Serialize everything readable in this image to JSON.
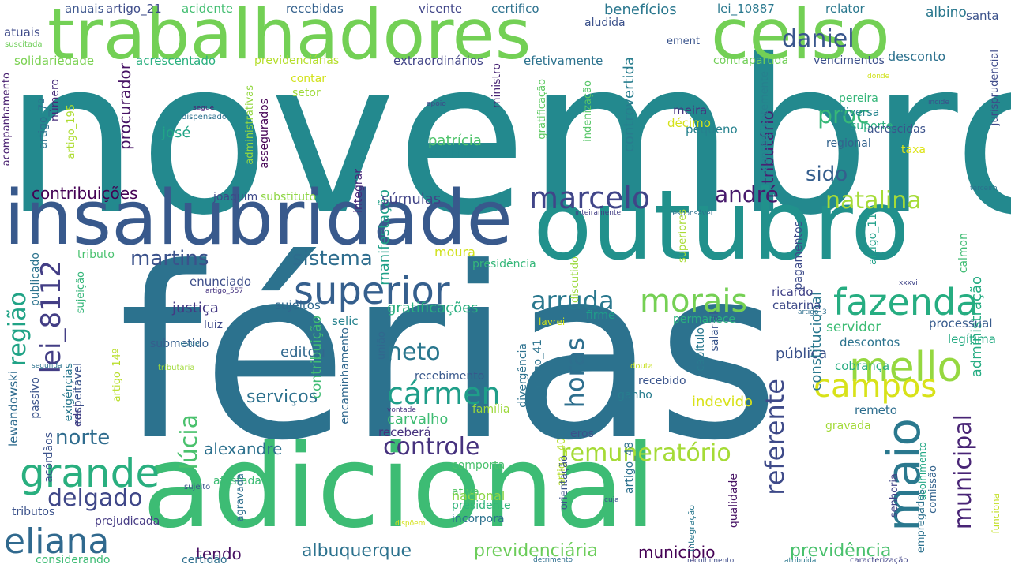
{
  "words": [
    {
      "text": "novembro",
      "color": "#23898e"
    },
    {
      "text": "férias",
      "color": "#2c728e"
    },
    {
      "text": "adicional",
      "color": "#3dbc74"
    },
    {
      "text": "trabalhadores",
      "color": "#73d055"
    },
    {
      "text": "celso",
      "color": "#73d055"
    },
    {
      "text": "insalubridade",
      "color": "#38598c"
    },
    {
      "text": "outubro",
      "color": "#21918c"
    },
    {
      "text": "superior",
      "color": "#355f8d"
    },
    {
      "text": "mello",
      "color": "#95d840"
    },
    {
      "text": "fazenda",
      "color": "#26ad81"
    },
    {
      "text": "morais",
      "color": "#75d054"
    },
    {
      "text": "campos",
      "color": "#d8e219"
    },
    {
      "text": "marcelo",
      "color": "#404588"
    },
    {
      "text": "grande",
      "color": "#29af7f"
    },
    {
      "text": "eliana",
      "color": "#30698e"
    },
    {
      "text": "cármen",
      "color": "#1f9e89"
    },
    {
      "text": "maio",
      "color": "#2a788e"
    },
    {
      "text": "lei_8112",
      "color": "#433e85"
    },
    {
      "text": "daniel",
      "color": "#39568c"
    },
    {
      "text": "arruda",
      "color": "#2a788e"
    },
    {
      "text": "remuneratório",
      "color": "#a5db36"
    },
    {
      "text": "controle",
      "color": "#46327e"
    },
    {
      "text": "natalina",
      "color": "#a5db36"
    },
    {
      "text": "delgado",
      "color": "#3f4788"
    },
    {
      "text": "neto",
      "color": "#2a778e"
    },
    {
      "text": "sistema",
      "color": "#2e6d8e"
    },
    {
      "text": "martins",
      "color": "#3b528b"
    },
    {
      "text": "norte",
      "color": "#2f6c8e"
    },
    {
      "text": "andré",
      "color": "#481a6c"
    },
    {
      "text": "proc",
      "color": "#37b878"
    },
    {
      "text": "sido",
      "color": "#355e8d"
    },
    {
      "text": "horas",
      "color": "#2e6f8e"
    },
    {
      "text": "referente",
      "color": "#3e4a89"
    },
    {
      "text": "municipal",
      "color": "#482475"
    },
    {
      "text": "região",
      "color": "#20a386"
    },
    {
      "text": "lúcia",
      "color": "#4ac16d"
    },
    {
      "text": "serviços",
      "color": "#2d718e"
    },
    {
      "text": "contribuições",
      "color": "#440154"
    },
    {
      "text": "tendo",
      "color": "#471063"
    },
    {
      "text": "albuquerque",
      "color": "#2c728e"
    },
    {
      "text": "previdenciária",
      "color": "#6ccd5a"
    },
    {
      "text": "município",
      "color": "#440154"
    },
    {
      "text": "previdência",
      "color": "#4ac16d"
    },
    {
      "text": "benefícios",
      "color": "#2a778e"
    },
    {
      "text": "albino",
      "color": "#2a788e"
    },
    {
      "text": "desconto",
      "color": "#2c718e"
    },
    {
      "text": "tributário",
      "color": "#482173"
    },
    {
      "text": "controvertida",
      "color": "#287d8e"
    },
    {
      "text": "josé",
      "color": "#20a486"
    },
    {
      "text": "procurador",
      "color": "#471365"
    },
    {
      "text": "manifestação",
      "color": "#1fa088"
    },
    {
      "text": "patrícia",
      "color": "#4ec36b"
    },
    {
      "text": "súmulas",
      "color": "#414487"
    },
    {
      "text": "justiça",
      "color": "#443983"
    },
    {
      "text": "gratificações",
      "color": "#29af7f"
    },
    {
      "text": "servidor",
      "color": "#3dbc74"
    },
    {
      "text": "pública",
      "color": "#3b528b"
    },
    {
      "text": "editou",
      "color": "#31688e"
    },
    {
      "text": "carvalho",
      "color": "#3fbc73"
    },
    {
      "text": "alexandre",
      "color": "#2d718e"
    },
    {
      "text": "nacional",
      "color": "#8bd646"
    },
    {
      "text": "indevido",
      "color": "#d8e219"
    },
    {
      "text": "administração",
      "color": "#25ac82"
    },
    {
      "text": "constitucional",
      "color": "#2a788e"
    },
    {
      "text": "lewandowski",
      "color": "#2f6b8e"
    },
    {
      "text": "contribuição",
      "color": "#3fbc73"
    },
    {
      "text": "moura",
      "color": "#d0e11c"
    },
    {
      "text": "enunciado",
      "color": "#3d4e8a"
    },
    {
      "text": "luiz",
      "color": "#3e4989"
    },
    {
      "text": "selic",
      "color": "#26828e"
    },
    {
      "text": "sujeitos",
      "color": "#31688e"
    },
    {
      "text": "ricardo",
      "color": "#414287"
    },
    {
      "text": "catarina",
      "color": "#3e4a89"
    },
    {
      "text": "processual",
      "color": "#375b8d"
    },
    {
      "text": "descontos",
      "color": "#2c738e"
    },
    {
      "text": "cobrança",
      "color": "#26ad81"
    },
    {
      "text": "legítima",
      "color": "#25ab82"
    },
    {
      "text": "remeto",
      "color": "#2e6e8e"
    },
    {
      "text": "gravada",
      "color": "#a2da37"
    },
    {
      "text": "acidente",
      "color": "#42be71"
    },
    {
      "text": "recebidas",
      "color": "#34618d"
    },
    {
      "text": "vicente",
      "color": "#404588"
    },
    {
      "text": "certifico",
      "color": "#2c718e"
    },
    {
      "text": "lei_10887",
      "color": "#2a788e"
    },
    {
      "text": "relator",
      "color": "#2a788e"
    },
    {
      "text": "santa",
      "color": "#3b528b"
    },
    {
      "text": "anuais",
      "color": "#3a548c"
    },
    {
      "text": "artigo_21",
      "color": "#3e4c8a"
    },
    {
      "text": "atuais",
      "color": "#3e4a89"
    },
    {
      "text": "suscitada",
      "color": "#6ece58"
    },
    {
      "text": "solidariedade",
      "color": "#7ad151"
    },
    {
      "text": "acrescentado",
      "color": "#2ab07f"
    },
    {
      "text": "previdenciárias",
      "color": "#b5de2b"
    },
    {
      "text": "extraordinários",
      "color": "#414487"
    },
    {
      "text": "efetivamente",
      "color": "#2c728e"
    },
    {
      "text": "contrapartida",
      "color": "#71cf57"
    },
    {
      "text": "vencimentos",
      "color": "#3c508b"
    },
    {
      "text": "aludida",
      "color": "#3b518b"
    },
    {
      "text": "ement",
      "color": "#3a548c"
    },
    {
      "text": "donde",
      "color": "#d0e11c"
    },
    {
      "text": "acompanhamento",
      "color": "#481f70"
    },
    {
      "text": "artigo_7º",
      "color": "#2e6f8e"
    },
    {
      "text": "número",
      "color": "#472c7a"
    },
    {
      "text": "artigo_195",
      "color": "#addc30"
    },
    {
      "text": "contar",
      "color": "#d2e21b"
    },
    {
      "text": "setor",
      "color": "#9fda3a"
    },
    {
      "text": "administrativas",
      "color": "#93d741"
    },
    {
      "text": "assegurados",
      "color": "#440154"
    },
    {
      "text": "segue",
      "color": "#482475"
    },
    {
      "text": "dispensado",
      "color": "#2d718e"
    },
    {
      "text": "apoio",
      "color": "#3e4a89"
    },
    {
      "text": "ministro",
      "color": "#482575"
    },
    {
      "text": "gratificação",
      "color": "#5ec962"
    },
    {
      "text": "indenização",
      "color": "#56c667"
    },
    {
      "text": "pequeno",
      "color": "#26828e"
    },
    {
      "text": "meira",
      "color": "#463480"
    },
    {
      "text": "décimo",
      "color": "#d5e21a"
    },
    {
      "text": "conseqüentemente",
      "color": "#27808e"
    },
    {
      "text": "pereira",
      "color": "#34b679"
    },
    {
      "text": "diversa",
      "color": "#25848e"
    },
    {
      "text": "suporte",
      "color": "#2ab07f"
    },
    {
      "text": "regional",
      "color": "#33638d"
    },
    {
      "text": "acrescidas",
      "color": "#3b528b"
    },
    {
      "text": "taxa",
      "color": "#dde318"
    },
    {
      "text": "incide",
      "color": "#3c508b"
    },
    {
      "text": "jurisprudencial",
      "color": "#3e4a89"
    },
    {
      "text": "terceiro",
      "color": "#2c728e"
    },
    {
      "text": "acolhido",
      "color": "#23898e"
    },
    {
      "text": "integrar",
      "color": "#472a7a"
    },
    {
      "text": "joaquim",
      "color": "#3e4989"
    },
    {
      "text": "substituto",
      "color": "#8ed645"
    },
    {
      "text": "inteiramente",
      "color": "#433e85"
    },
    {
      "text": "responsável",
      "color": "#2d708e"
    },
    {
      "text": "superiores",
      "color": "#a8db34"
    },
    {
      "text": "pagamentos",
      "color": "#3e4c8a"
    },
    {
      "text": "artigo_11",
      "color": "#1f9f88"
    },
    {
      "text": "presidência",
      "color": "#35b779"
    },
    {
      "text": "tributo",
      "color": "#48c16e"
    },
    {
      "text": "sujeição",
      "color": "#34b679"
    },
    {
      "text": "publicado",
      "color": "#2c738e"
    },
    {
      "text": "artigo_557",
      "color": "#463480"
    },
    {
      "text": "discutido",
      "color": "#9bd93c"
    },
    {
      "text": "xxxvi",
      "color": "#404588"
    },
    {
      "text": "calmon",
      "color": "#3fbc73"
    },
    {
      "text": "firme",
      "color": "#1f9e89"
    },
    {
      "text": "artigo_3",
      "color": "#2e6f8e"
    },
    {
      "text": "permanece",
      "color": "#2ab07f"
    },
    {
      "text": "lavrei",
      "color": "#d2e21b"
    },
    {
      "text": "submetido",
      "color": "#355e8d"
    },
    {
      "text": "reside",
      "color": "#2a768e"
    },
    {
      "text": "tributária",
      "color": "#a0da39"
    },
    {
      "text": "segunda",
      "color": "#2d718e"
    },
    {
      "text": "passivo",
      "color": "#3a538b"
    },
    {
      "text": "respeitável",
      "color": "#3b528b"
    },
    {
      "text": "artigo_14º",
      "color": "#b8de29"
    },
    {
      "text": "exigências",
      "color": "#2a788e"
    },
    {
      "text": "encaminhamento",
      "color": "#31688e"
    },
    {
      "text": "união",
      "color": "#31688e"
    },
    {
      "text": "artigo_41",
      "color": "#2c738e"
    },
    {
      "text": "recebimento",
      "color": "#38588c"
    },
    {
      "text": "recebido",
      "color": "#3a548c"
    },
    {
      "text": "capítulo",
      "color": "#2a788e"
    },
    {
      "text": "salarial",
      "color": "#39558c"
    },
    {
      "text": "douta",
      "color": "#c8e020"
    },
    {
      "text": "ganho",
      "color": "#287c8e"
    },
    {
      "text": "divergência",
      "color": "#2c718e"
    },
    {
      "text": "acórdãos",
      "color": "#3b528b"
    },
    {
      "text": "edcl",
      "color": "#433e85"
    },
    {
      "text": "vontade",
      "color": "#463480"
    },
    {
      "text": "família",
      "color": "#9dd93b"
    },
    {
      "text": "eros",
      "color": "#3b528b"
    },
    {
      "text": "receberá",
      "color": "#46327e"
    },
    {
      "text": "artigo_40",
      "color": "#b5de2b"
    },
    {
      "text": "comporta",
      "color": "#4ac16d"
    },
    {
      "text": "orientação",
      "color": "#3b528b"
    },
    {
      "text": "artigo_48",
      "color": "#2d718e"
    },
    {
      "text": "qualidade",
      "color": "#471365"
    },
    {
      "text": "acolhimento",
      "color": "#22a785"
    },
    {
      "text": "comissão",
      "color": "#33638d"
    },
    {
      "text": "empregados",
      "color": "#2c718e"
    },
    {
      "text": "funciona",
      "color": "#c2df23"
    },
    {
      "text": "senhoria",
      "color": "#414487"
    },
    {
      "text": "afastada",
      "color": "#3dbc74"
    },
    {
      "text": "agravada",
      "color": "#2e6f8e"
    },
    {
      "text": "sujeito",
      "color": "#3a538b"
    },
    {
      "text": "tributos",
      "color": "#3b528b"
    },
    {
      "text": "prejudicada",
      "color": "#443983"
    },
    {
      "text": "ativa",
      "color": "#55c667"
    },
    {
      "text": "presidente",
      "color": "#31b57b"
    },
    {
      "text": "incorpora",
      "color": "#2c718e"
    },
    {
      "text": "cuja",
      "color": "#3a548c"
    },
    {
      "text": "integração",
      "color": "#2a788e"
    },
    {
      "text": "dispõem",
      "color": "#d5e21a"
    },
    {
      "text": "considerando",
      "color": "#3dbc74"
    },
    {
      "text": "certidão",
      "color": "#2e6f8e"
    },
    {
      "text": "detrimento",
      "color": "#2e6f8e"
    },
    {
      "text": "recolhimento",
      "color": "#3e4c8a"
    },
    {
      "text": "atribuída",
      "color": "#2a788e"
    },
    {
      "text": "caracterização",
      "color": "#414487"
    }
  ]
}
